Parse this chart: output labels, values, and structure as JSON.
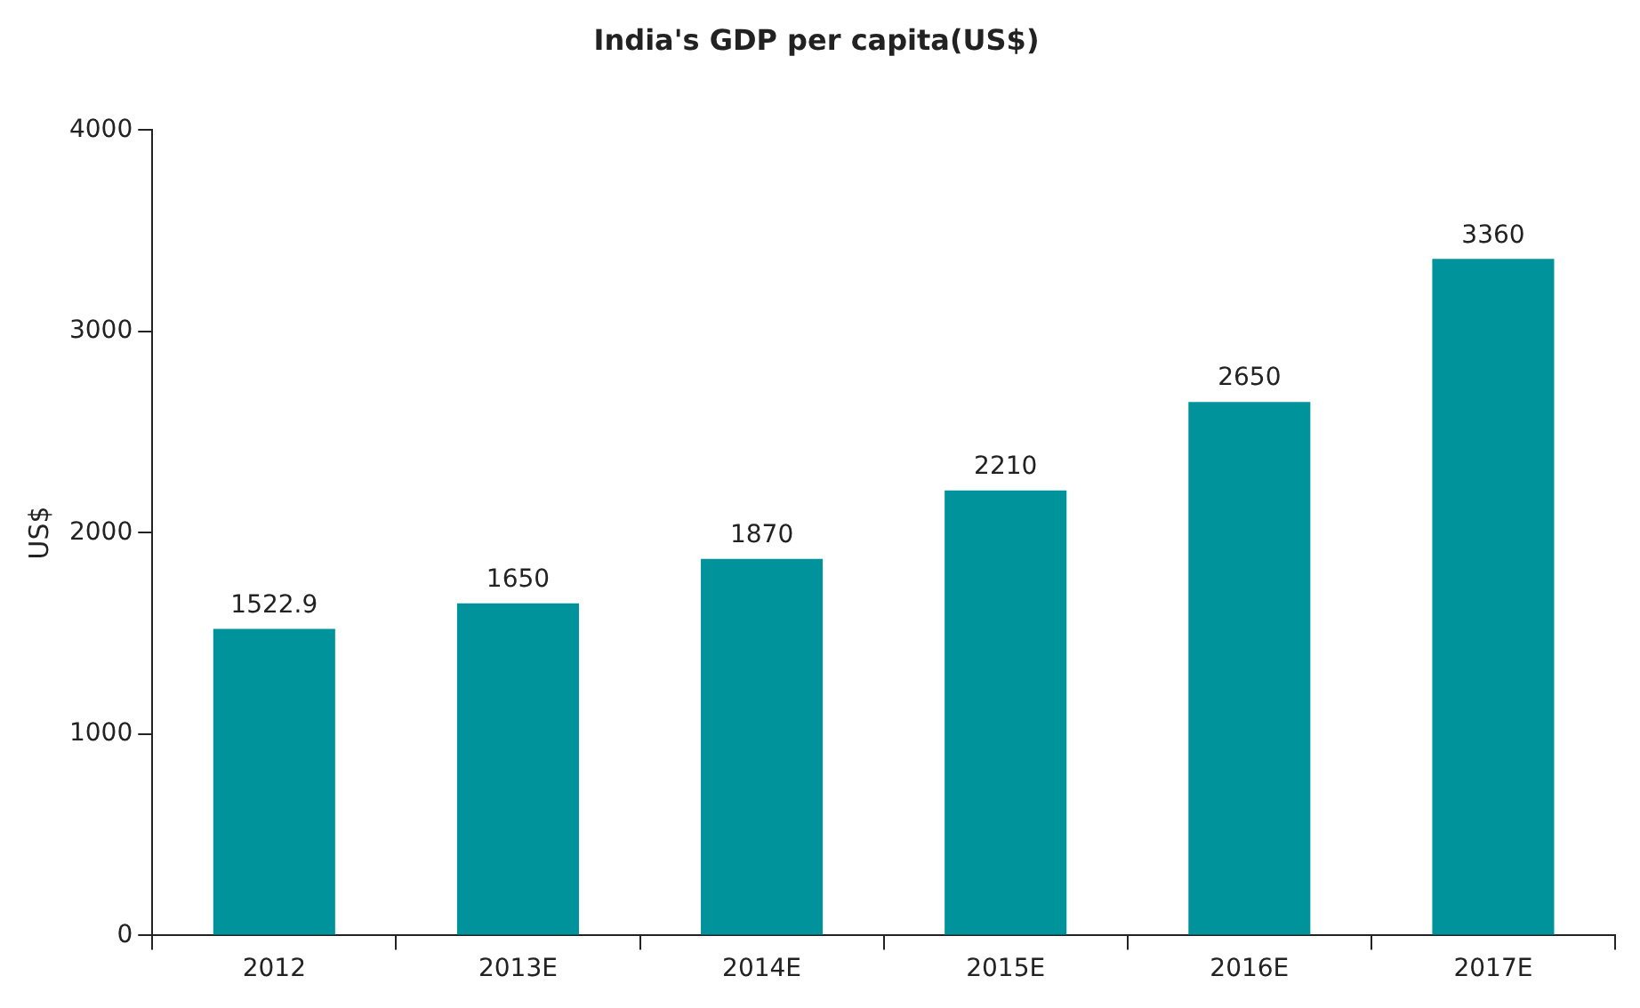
{
  "chart_data": {
    "type": "bar",
    "title": "India's GDP per capita(US$)",
    "ylabel": "US$",
    "categories": [
      "2012",
      "2013E",
      "2014E",
      "2015E",
      "2016E",
      "2017E"
    ],
    "values": [
      1522.9,
      1650,
      1870,
      2210,
      2650,
      3360
    ],
    "color": "#00939b",
    "ylim": [
      0,
      4000
    ],
    "yticks": [
      0,
      1000,
      2000,
      3000,
      4000
    ],
    "data_labels": true,
    "grid": false
  }
}
